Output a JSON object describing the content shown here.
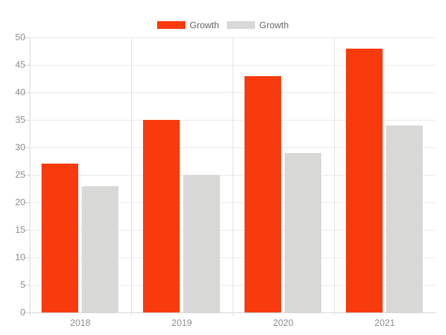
{
  "chart_data": {
    "type": "bar",
    "title": "",
    "categories": [
      "2018",
      "2019",
      "2020",
      "2021"
    ],
    "series": [
      {
        "name": "Growth",
        "color": "#F93A0D",
        "values": [
          27,
          35,
          43,
          48
        ]
      },
      {
        "name": "Growth",
        "color": "#D8D8D6",
        "values": [
          23,
          25,
          29,
          34
        ]
      }
    ],
    "xlabel": "",
    "ylabel": "",
    "ylim": [
      0,
      50
    ],
    "yticks": [
      0,
      5,
      10,
      15,
      20,
      25,
      30,
      35,
      40,
      45,
      50
    ],
    "grid": true,
    "legend_position": "top-center"
  },
  "colors": {
    "series_red": "#F93A0D",
    "series_gray": "#D8D8D6",
    "grid_line": "#E9E9E9",
    "category_divider": "#E2E2E2",
    "axis_line": "#D6D6D6",
    "tick_mark": "#D6D6D6",
    "axis_label_text": "#8D8D8D",
    "legend_text": "#666666",
    "background": "#FFFFFF"
  }
}
